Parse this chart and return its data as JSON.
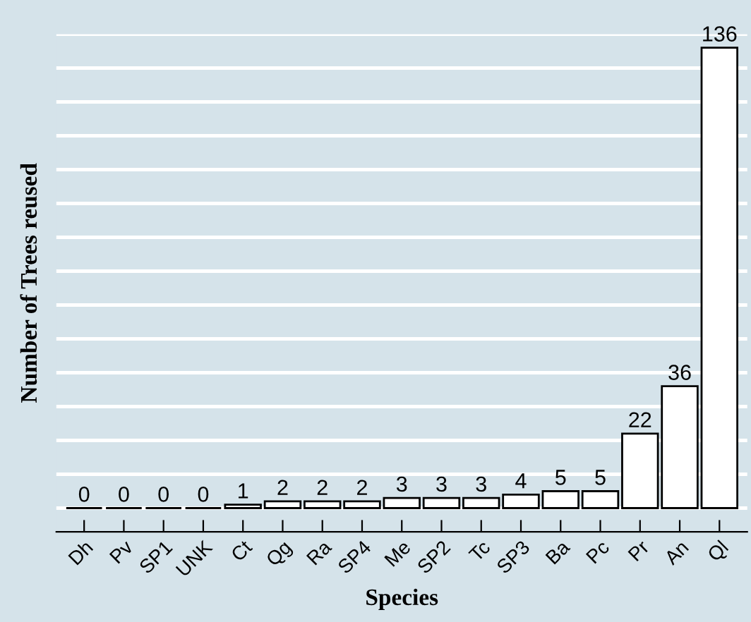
{
  "chart_data": {
    "type": "bar",
    "xlabel": "Species",
    "ylabel": "Number of Trees reused",
    "categories": [
      "Dh",
      "Pv",
      "SP1",
      "UNK",
      "Ct",
      "Qg",
      "Ra",
      "SP4",
      "Me",
      "SP2",
      "Tc",
      "SP3",
      "Ba",
      "Pc",
      "Pr",
      "An",
      "Ql"
    ],
    "values": [
      0,
      0,
      0,
      0,
      1,
      2,
      2,
      2,
      3,
      3,
      3,
      4,
      5,
      5,
      22,
      36,
      136
    ],
    "colors": [
      "#000000",
      "#000000",
      "#000000",
      "#000000",
      "#ffffff",
      "#ffffff",
      "#ffffff",
      "#ffffff",
      "#ffffff",
      "#ffffff",
      "#ffffff",
      "#ffffff",
      "#ffffff",
      "#ffffff",
      "#ffffff",
      "#ffffff",
      "#ffffff"
    ],
    "data_labels": true,
    "grid": "y",
    "tick_labels": "x",
    "ylim": [
      -7,
      140
    ],
    "yticks": [
      {
        "value": 0,
        "label": null
      },
      {
        "value": 10,
        "label": null
      },
      {
        "value": 20,
        "label": null
      },
      {
        "value": 30,
        "label": null
      },
      {
        "value": 40,
        "label": null
      },
      {
        "value": 50,
        "label": null
      },
      {
        "value": 60,
        "label": null
      },
      {
        "value": 70,
        "label": null
      },
      {
        "value": 80,
        "label": null
      },
      {
        "value": 90,
        "label": null
      },
      {
        "value": 100,
        "label": null
      },
      {
        "value": 110,
        "label": null
      },
      {
        "value": 120,
        "label": null
      },
      {
        "value": 130,
        "label": null
      },
      {
        "value": 140,
        "label": null
      }
    ]
  }
}
